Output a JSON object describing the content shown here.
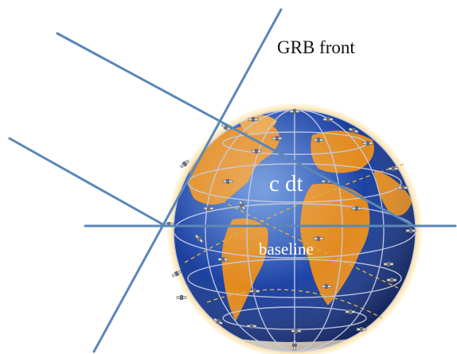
{
  "labels": {
    "grb_front": "GRB front",
    "c_dt": "c dt",
    "baseline": "baseline"
  },
  "colors": {
    "line": "#5b87b8",
    "ocean": "#1e3f9a",
    "land": "#e0861c",
    "glow": "#f6c35a",
    "orbit": "#c8cde6",
    "orbit_dashed": "#d9b24a"
  },
  "icons": {
    "globe": "earth-globe",
    "satellite": "satellite-icon"
  }
}
